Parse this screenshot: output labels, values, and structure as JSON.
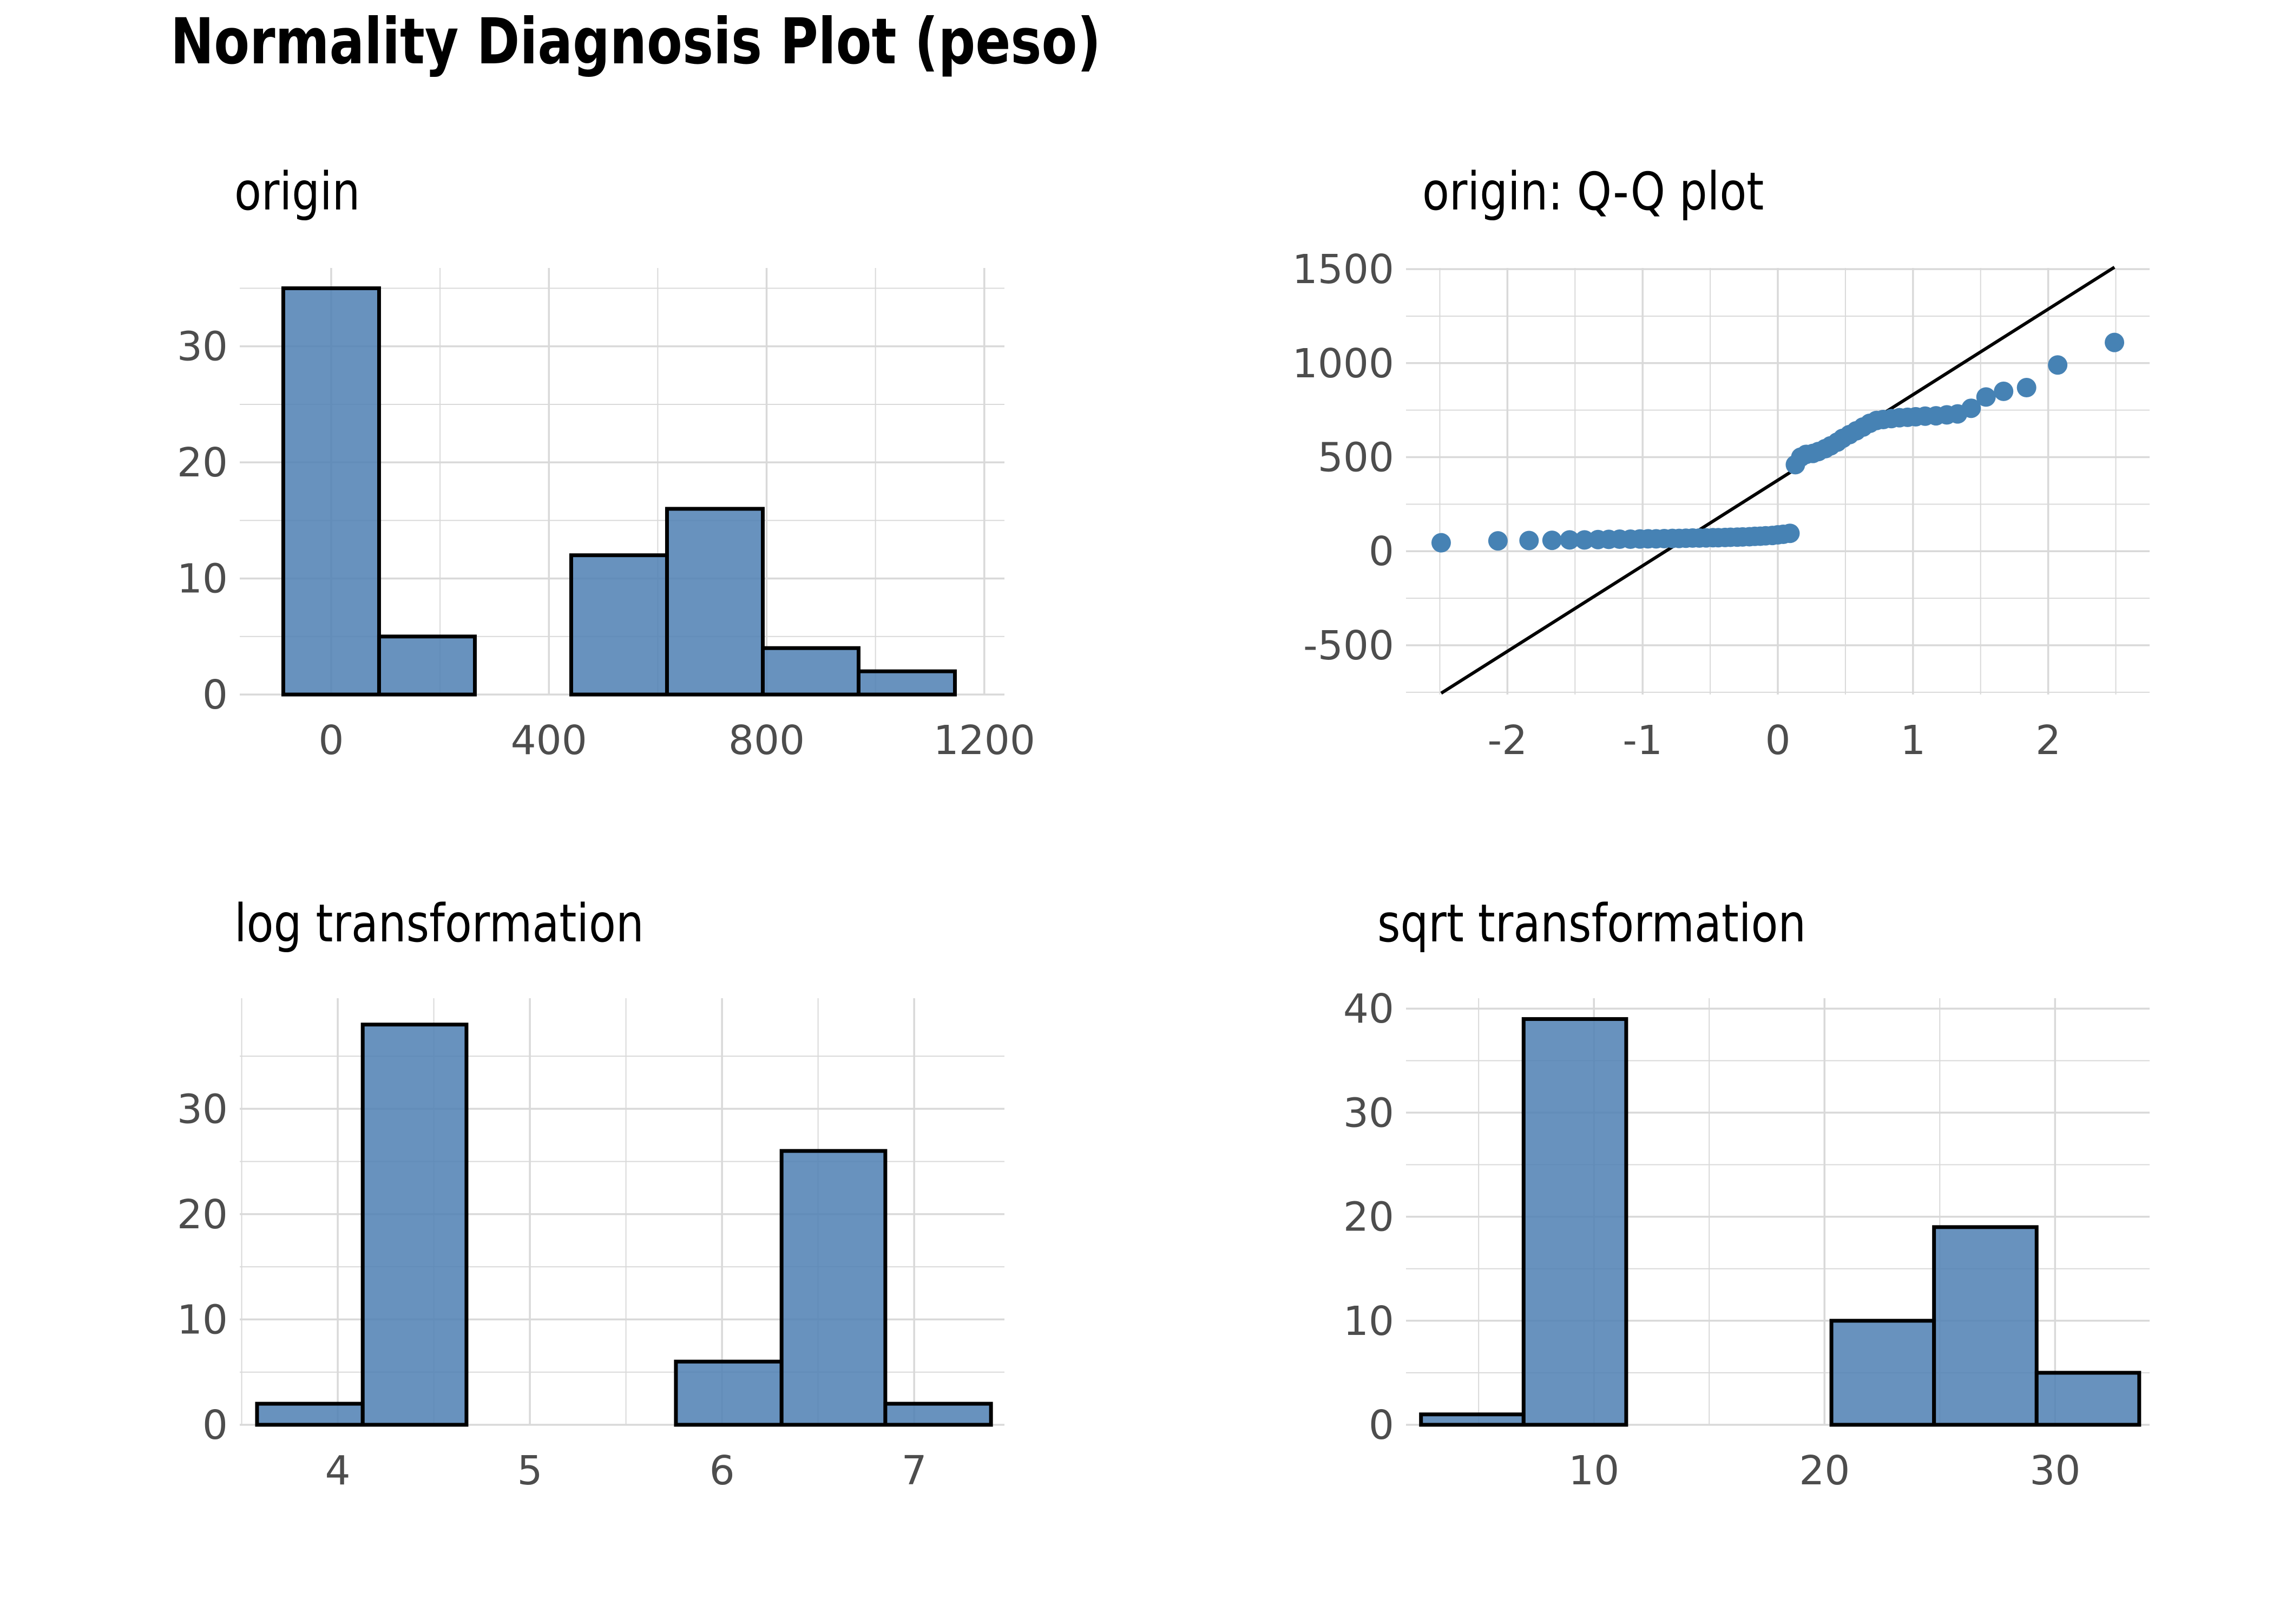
{
  "title": "Normality Diagnosis Plot (peso)",
  "colors": {
    "fill": "#4E7FB3",
    "stroke": "#000000",
    "point": "#4682B4",
    "grid": "#D9D9D9",
    "tick": "#4D4D4D"
  },
  "chart_data": [
    {
      "type": "bar",
      "title": "origin",
      "xlabel": "",
      "ylabel": "",
      "xlim": [
        -168,
        1237
      ],
      "ylim": [
        0,
        36.75
      ],
      "xticks": [
        0,
        400,
        800,
        1200
      ],
      "yticks": [
        0,
        10,
        20,
        30
      ],
      "bins": [
        {
          "x0": -88,
          "x1": 88,
          "count": 35
        },
        {
          "x0": 88,
          "x1": 264,
          "count": 5
        },
        {
          "x0": 264,
          "x1": 441,
          "count": 0
        },
        {
          "x0": 441,
          "x1": 617,
          "count": 12
        },
        {
          "x0": 617,
          "x1": 793,
          "count": 16
        },
        {
          "x0": 793,
          "x1": 969,
          "count": 4
        },
        {
          "x0": 969,
          "x1": 1146,
          "count": 2
        }
      ]
    },
    {
      "type": "scatter",
      "title": "origin: Q-Q plot",
      "xlabel": "",
      "ylabel": "",
      "xlim": [
        -2.75,
        2.75
      ],
      "ylim": [
        -762,
        1506
      ],
      "xticks": [
        -2,
        -1,
        0,
        1,
        2
      ],
      "yticks": [
        -500,
        0,
        500,
        1000,
        1500
      ],
      "line": {
        "x": [
          -2.49,
          2.49
        ],
        "y": [
          -755,
          1510
        ]
      },
      "points": [
        [
          -2.49,
          45
        ],
        [
          -2.07,
          55
        ],
        [
          -1.84,
          57
        ],
        [
          -1.67,
          58
        ],
        [
          -1.54,
          60
        ],
        [
          -1.43,
          60
        ],
        [
          -1.33,
          62
        ],
        [
          -1.25,
          63
        ],
        [
          -1.17,
          64
        ],
        [
          -1.09,
          64
        ],
        [
          -1.02,
          65
        ],
        [
          -0.96,
          66
        ],
        [
          -0.9,
          66
        ],
        [
          -0.84,
          67
        ],
        [
          -0.78,
          68
        ],
        [
          -0.73,
          68
        ],
        [
          -0.68,
          69
        ],
        [
          -0.63,
          70
        ],
        [
          -0.58,
          70
        ],
        [
          -0.53,
          71
        ],
        [
          -0.48,
          72
        ],
        [
          -0.44,
          72
        ],
        [
          -0.39,
          73
        ],
        [
          -0.35,
          74
        ],
        [
          -0.3,
          75
        ],
        [
          -0.26,
          76
        ],
        [
          -0.21,
          77
        ],
        [
          -0.17,
          79
        ],
        [
          -0.13,
          80
        ],
        [
          -0.09,
          82
        ],
        [
          -0.04,
          84
        ],
        [
          0.0,
          87
        ],
        [
          0.04,
          90
        ],
        [
          0.09,
          95
        ],
        [
          0.13,
          460
        ],
        [
          0.17,
          500
        ],
        [
          0.21,
          515
        ],
        [
          0.26,
          520
        ],
        [
          0.3,
          530
        ],
        [
          0.35,
          545
        ],
        [
          0.39,
          560
        ],
        [
          0.44,
          580
        ],
        [
          0.48,
          600
        ],
        [
          0.53,
          620
        ],
        [
          0.58,
          640
        ],
        [
          0.63,
          660
        ],
        [
          0.68,
          680
        ],
        [
          0.73,
          695
        ],
        [
          0.78,
          700
        ],
        [
          0.84,
          705
        ],
        [
          0.9,
          710
        ],
        [
          0.96,
          712
        ],
        [
          1.02,
          715
        ],
        [
          1.09,
          718
        ],
        [
          1.17,
          720
        ],
        [
          1.25,
          725
        ],
        [
          1.33,
          730
        ],
        [
          1.43,
          760
        ],
        [
          1.54,
          820
        ],
        [
          1.67,
          850
        ],
        [
          1.84,
          870
        ],
        [
          2.07,
          990
        ],
        [
          2.49,
          1110
        ]
      ]
    },
    {
      "type": "bar",
      "title": "log transformation",
      "xlabel": "",
      "ylabel": "",
      "xlim": [
        3.49,
        7.47
      ],
      "ylim": [
        0,
        40.5
      ],
      "xticks": [
        4,
        5,
        6,
        7
      ],
      "yticks": [
        0,
        10,
        20,
        30
      ],
      "bins": [
        {
          "x0": 3.58,
          "x1": 4.13,
          "count": 2
        },
        {
          "x0": 4.13,
          "x1": 4.67,
          "count": 38
        },
        {
          "x0": 4.67,
          "x1": 5.22,
          "count": 0
        },
        {
          "x0": 5.22,
          "x1": 5.76,
          "count": 0
        },
        {
          "x0": 5.76,
          "x1": 6.31,
          "count": 6
        },
        {
          "x0": 6.31,
          "x1": 6.85,
          "count": 26
        },
        {
          "x0": 6.85,
          "x1": 7.4,
          "count": 2
        }
      ]
    },
    {
      "type": "bar",
      "title": "sqrt transformation",
      "xlabel": "",
      "ylabel": "",
      "xlim": [
        1.85,
        34.1
      ],
      "ylim": [
        0,
        41
      ],
      "xticks": [
        10,
        20,
        30
      ],
      "yticks": [
        0,
        10,
        20,
        30,
        40
      ],
      "bins": [
        {
          "x0": 2.5,
          "x1": 6.95,
          "count": 1
        },
        {
          "x0": 6.95,
          "x1": 11.4,
          "count": 39
        },
        {
          "x0": 11.4,
          "x1": 15.85,
          "count": 0
        },
        {
          "x0": 15.85,
          "x1": 20.3,
          "count": 0
        },
        {
          "x0": 20.3,
          "x1": 24.75,
          "count": 10
        },
        {
          "x0": 24.75,
          "x1": 29.2,
          "count": 19
        },
        {
          "x0": 29.2,
          "x1": 33.65,
          "count": 5
        }
      ]
    }
  ]
}
